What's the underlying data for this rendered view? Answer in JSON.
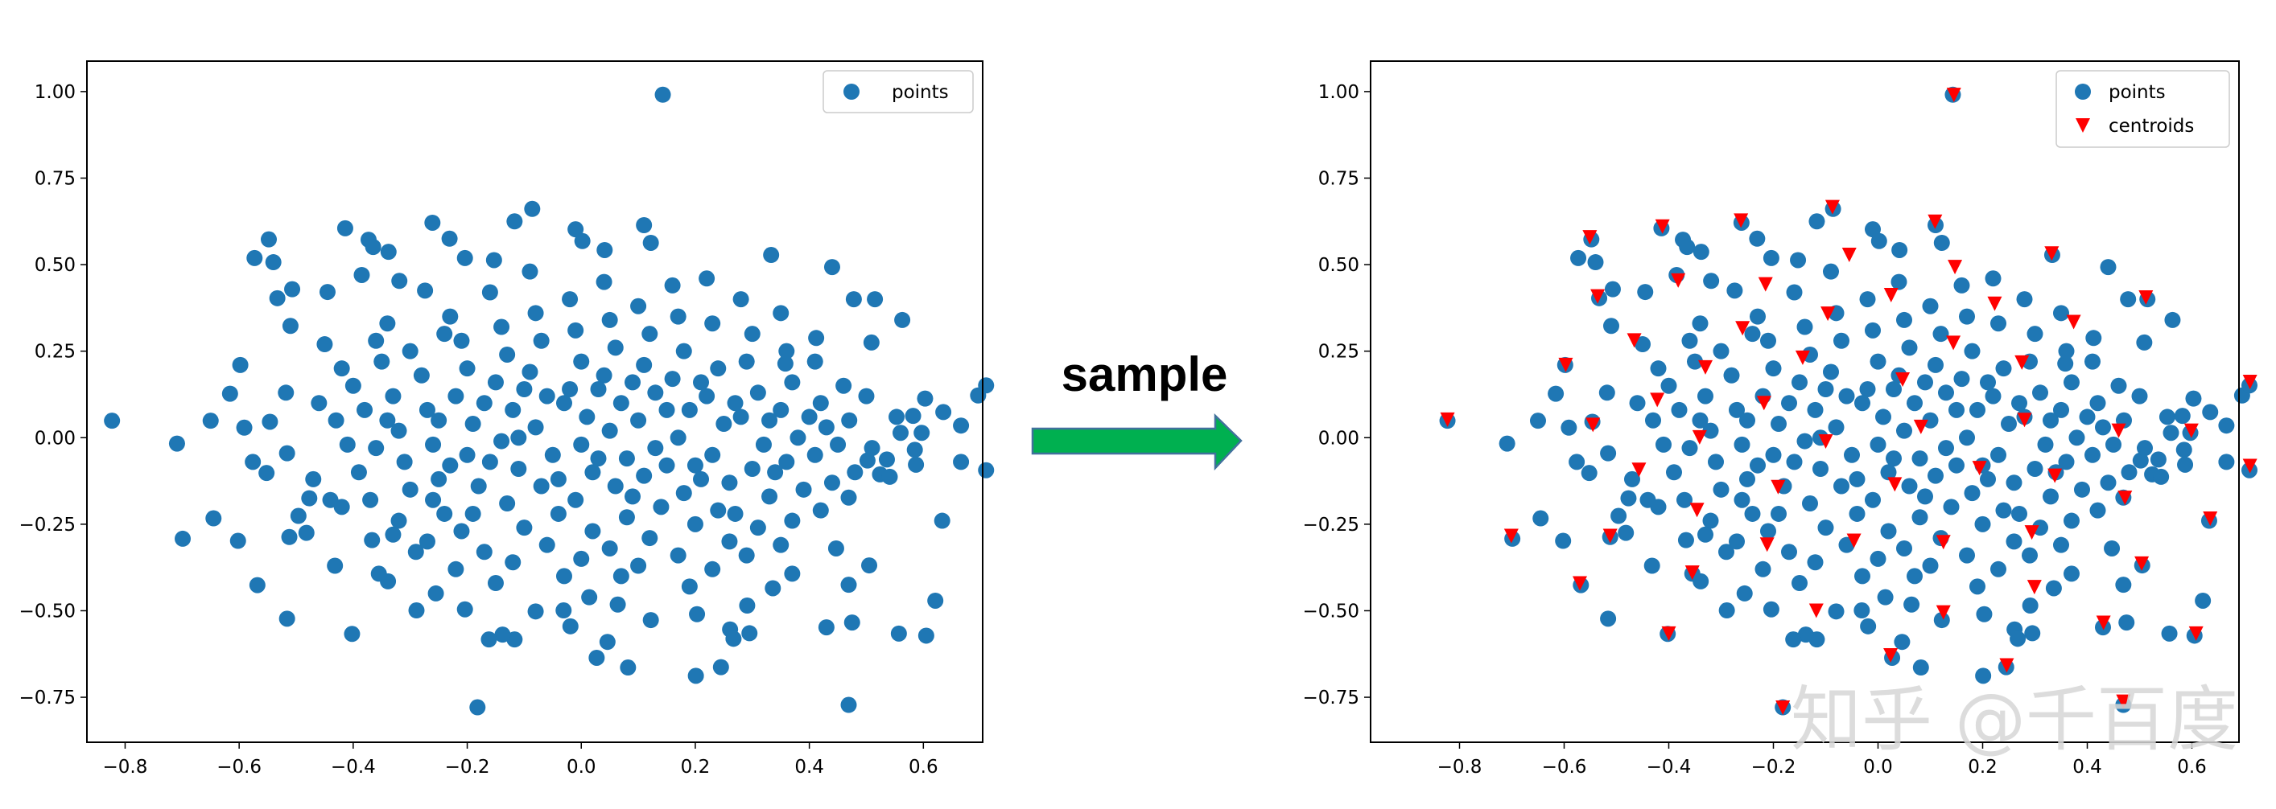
{
  "chart_data": [
    {
      "type": "scatter",
      "title": "",
      "xlabel": "",
      "ylabel": "",
      "xlim": [
        -0.867,
        0.704
      ],
      "ylim": [
        -0.88,
        1.088
      ],
      "xticks": [
        -0.8,
        -0.6,
        -0.4,
        -0.2,
        0.0,
        0.2,
        0.4,
        0.6
      ],
      "xtick_labels": [
        "−0.8",
        "−0.6",
        "−0.4",
        "−0.2",
        "0.0",
        "0.2",
        "0.4",
        "0.6"
      ],
      "yticks": [
        1.0,
        0.75,
        0.5,
        0.25,
        0.0,
        -0.25,
        -0.5,
        -0.75
      ],
      "ytick_labels": [
        "1.00",
        "0.75",
        "0.50",
        "0.25",
        "0.00",
        "−0.25",
        "−0.50",
        "−0.75"
      ],
      "grid": false,
      "legend_position": "top-right",
      "series": [
        {
          "name": "points",
          "marker": "circle",
          "color": "#1f77b4",
          "ref": "points"
        }
      ]
    },
    {
      "type": "scatter",
      "title": "",
      "xlabel": "",
      "ylabel": "",
      "xlim": [
        -0.97,
        0.69
      ],
      "ylim": [
        -0.88,
        1.088
      ],
      "xticks": [
        -0.8,
        -0.6,
        -0.4,
        -0.2,
        0.0,
        0.2,
        0.4,
        0.6
      ],
      "xtick_labels": [
        "−0.8",
        "−0.6",
        "−0.4",
        "−0.2",
        "0.0",
        "0.2",
        "0.4",
        "0.6"
      ],
      "yticks": [
        1.0,
        0.75,
        0.5,
        0.25,
        0.0,
        -0.25,
        -0.5,
        -0.75
      ],
      "ytick_labels": [
        "1.00",
        "0.75",
        "0.50",
        "0.25",
        "0.00",
        "−0.25",
        "−0.50",
        "−0.75"
      ],
      "grid": false,
      "legend_position": "top-right",
      "series": [
        {
          "name": "points",
          "marker": "circle",
          "color": "#1f77b4",
          "ref": "points"
        },
        {
          "name": "centroids",
          "marker": "triangle-down",
          "color": "#ff0000",
          "ref": "centroids"
        }
      ]
    }
  ],
  "points": [
    [
      0.143,
      0.991
    ],
    [
      -0.823,
      0.049
    ],
    [
      -0.709,
      -0.017
    ],
    [
      -0.699,
      -0.292
    ],
    [
      -0.65,
      0.049
    ],
    [
      -0.645,
      -0.233
    ],
    [
      -0.616,
      0.127
    ],
    [
      -0.598,
      0.21
    ],
    [
      -0.591,
      0.029
    ],
    [
      -0.602,
      -0.298
    ],
    [
      -0.576,
      -0.07
    ],
    [
      -0.568,
      -0.426
    ],
    [
      -0.552,
      -0.102
    ],
    [
      -0.548,
      0.573
    ],
    [
      -0.573,
      0.519
    ],
    [
      -0.54,
      0.507
    ],
    [
      -0.546,
      0.046
    ],
    [
      -0.518,
      0.13
    ],
    [
      -0.516,
      -0.045
    ],
    [
      -0.512,
      -0.287
    ],
    [
      -0.516,
      -0.523
    ],
    [
      -0.51,
      0.323
    ],
    [
      -0.533,
      0.403
    ],
    [
      -0.507,
      0.429
    ],
    [
      -0.496,
      -0.226
    ],
    [
      -0.482,
      -0.275
    ],
    [
      -0.477,
      -0.175
    ],
    [
      -0.445,
      0.421
    ],
    [
      -0.432,
      -0.37
    ],
    [
      -0.414,
      0.605
    ],
    [
      -0.402,
      -0.567
    ],
    [
      -0.385,
      0.47
    ],
    [
      -0.373,
      0.572
    ],
    [
      -0.365,
      0.551
    ],
    [
      -0.338,
      0.537
    ],
    [
      -0.319,
      0.453
    ],
    [
      -0.261,
      0.621
    ],
    [
      -0.231,
      0.575
    ],
    [
      -0.274,
      0.425
    ],
    [
      -0.204,
      0.519
    ],
    [
      -0.153,
      0.513
    ],
    [
      -0.117,
      0.625
    ],
    [
      -0.086,
      0.661
    ],
    [
      -0.01,
      0.602
    ],
    [
      0.002,
      0.568
    ],
    [
      0.11,
      0.614
    ],
    [
      0.122,
      0.563
    ],
    [
      0.041,
      0.542
    ],
    [
      0.44,
      0.493
    ],
    [
      0.333,
      0.528
    ],
    [
      0.478,
      0.4
    ],
    [
      0.515,
      0.4
    ],
    [
      0.563,
      0.34
    ],
    [
      0.509,
      0.275
    ],
    [
      0.358,
      0.214
    ],
    [
      0.412,
      0.288
    ],
    [
      0.603,
      0.113
    ],
    [
      0.696,
      0.122
    ],
    [
      0.71,
      0.151
    ],
    [
      0.635,
      0.074
    ],
    [
      0.666,
      0.035
    ],
    [
      0.666,
      -0.07
    ],
    [
      0.71,
      -0.094
    ],
    [
      0.553,
      0.06
    ],
    [
      0.582,
      0.063
    ],
    [
      0.56,
      0.014
    ],
    [
      0.597,
      0.014
    ],
    [
      0.585,
      -0.035
    ],
    [
      0.587,
      -0.078
    ],
    [
      0.536,
      -0.063
    ],
    [
      0.524,
      -0.106
    ],
    [
      0.541,
      -0.113
    ],
    [
      0.502,
      -0.066
    ],
    [
      0.633,
      -0.24
    ],
    [
      0.621,
      -0.471
    ],
    [
      0.557,
      -0.566
    ],
    [
      0.605,
      -0.572
    ],
    [
      0.469,
      -0.772
    ],
    [
      0.469,
      -0.425
    ],
    [
      0.475,
      -0.534
    ],
    [
      0.43,
      -0.548
    ],
    [
      0.505,
      -0.369
    ],
    [
      0.447,
      -0.32
    ],
    [
      0.469,
      -0.173
    ],
    [
      0.37,
      -0.393
    ],
    [
      0.295,
      -0.565
    ],
    [
      0.261,
      -0.554
    ],
    [
      0.267,
      -0.581
    ],
    [
      0.245,
      -0.663
    ],
    [
      0.201,
      -0.688
    ],
    [
      0.082,
      -0.664
    ],
    [
      0.027,
      -0.636
    ],
    [
      0.046,
      -0.59
    ],
    [
      0.064,
      -0.482
    ],
    [
      0.014,
      -0.461
    ],
    [
      -0.019,
      -0.545
    ],
    [
      -0.031,
      -0.499
    ],
    [
      -0.08,
      -0.502
    ],
    [
      -0.117,
      -0.583
    ],
    [
      -0.138,
      -0.569
    ],
    [
      -0.162,
      -0.583
    ],
    [
      -0.182,
      -0.779
    ],
    [
      -0.204,
      -0.496
    ],
    [
      -0.289,
      -0.499
    ],
    [
      -0.255,
      -0.45
    ],
    [
      -0.339,
      -0.415
    ],
    [
      -0.355,
      -0.393
    ],
    [
      -0.367,
      -0.296
    ],
    [
      0.203,
      -0.51
    ],
    [
      0.122,
      -0.527
    ],
    [
      0.291,
      -0.485
    ],
    [
      0.336,
      -0.435
    ],
    [
      -0.42,
      0.2
    ],
    [
      -0.4,
      0.15
    ],
    [
      -0.38,
      0.08
    ],
    [
      -0.43,
      0.05
    ],
    [
      -0.41,
      -0.02
    ],
    [
      -0.39,
      -0.1
    ],
    [
      -0.37,
      -0.18
    ],
    [
      -0.42,
      -0.2
    ],
    [
      -0.36,
      0.28
    ],
    [
      -0.34,
      0.33
    ],
    [
      -0.33,
      0.12
    ],
    [
      -0.32,
      0.02
    ],
    [
      -0.31,
      -0.07
    ],
    [
      -0.3,
      -0.15
    ],
    [
      -0.32,
      -0.24
    ],
    [
      -0.29,
      -0.33
    ],
    [
      -0.3,
      0.25
    ],
    [
      -0.28,
      0.18
    ],
    [
      -0.27,
      0.08
    ],
    [
      -0.26,
      -0.02
    ],
    [
      -0.25,
      -0.12
    ],
    [
      -0.24,
      -0.22
    ],
    [
      -0.27,
      -0.3
    ],
    [
      -0.22,
      -0.38
    ],
    [
      -0.23,
      0.35
    ],
    [
      -0.21,
      0.28
    ],
    [
      -0.2,
      0.2
    ],
    [
      -0.22,
      0.12
    ],
    [
      -0.19,
      0.04
    ],
    [
      -0.2,
      -0.05
    ],
    [
      -0.18,
      -0.14
    ],
    [
      -0.21,
      -0.27
    ],
    [
      -0.17,
      -0.33
    ],
    [
      -0.15,
      -0.42
    ],
    [
      -0.16,
      0.42
    ],
    [
      -0.14,
      0.32
    ],
    [
      -0.13,
      0.24
    ],
    [
      -0.15,
      0.16
    ],
    [
      -0.12,
      0.08
    ],
    [
      -0.14,
      -0.01
    ],
    [
      -0.11,
      -0.09
    ],
    [
      -0.13,
      -0.19
    ],
    [
      -0.1,
      -0.26
    ],
    [
      -0.12,
      -0.36
    ],
    [
      -0.09,
      0.48
    ],
    [
      -0.08,
      0.36
    ],
    [
      -0.07,
      0.28
    ],
    [
      -0.09,
      0.19
    ],
    [
      -0.06,
      0.12
    ],
    [
      -0.08,
      0.03
    ],
    [
      -0.05,
      -0.05
    ],
    [
      -0.07,
      -0.14
    ],
    [
      -0.04,
      -0.22
    ],
    [
      -0.06,
      -0.31
    ],
    [
      -0.03,
      -0.4
    ],
    [
      -0.02,
      0.4
    ],
    [
      -0.01,
      0.31
    ],
    [
      0.0,
      0.22
    ],
    [
      -0.02,
      0.14
    ],
    [
      0.01,
      0.06
    ],
    [
      0.0,
      -0.02
    ],
    [
      0.02,
      -0.1
    ],
    [
      -0.01,
      -0.18
    ],
    [
      0.02,
      -0.27
    ],
    [
      0.0,
      -0.35
    ],
    [
      0.04,
      0.45
    ],
    [
      0.05,
      0.34
    ],
    [
      0.06,
      0.26
    ],
    [
      0.04,
      0.18
    ],
    [
      0.07,
      0.1
    ],
    [
      0.05,
      0.02
    ],
    [
      0.08,
      -0.06
    ],
    [
      0.06,
      -0.14
    ],
    [
      0.08,
      -0.23
    ],
    [
      0.05,
      -0.32
    ],
    [
      0.07,
      -0.4
    ],
    [
      0.1,
      0.38
    ],
    [
      0.12,
      0.3
    ],
    [
      0.11,
      0.21
    ],
    [
      0.13,
      0.13
    ],
    [
      0.1,
      0.05
    ],
    [
      0.13,
      -0.03
    ],
    [
      0.11,
      -0.11
    ],
    [
      0.14,
      -0.2
    ],
    [
      0.12,
      -0.29
    ],
    [
      0.1,
      -0.37
    ],
    [
      0.16,
      0.44
    ],
    [
      0.17,
      0.35
    ],
    [
      0.18,
      0.25
    ],
    [
      0.16,
      0.17
    ],
    [
      0.19,
      0.08
    ],
    [
      0.17,
      0.0
    ],
    [
      0.2,
      -0.08
    ],
    [
      0.18,
      -0.16
    ],
    [
      0.2,
      -0.25
    ],
    [
      0.17,
      -0.34
    ],
    [
      0.19,
      -0.43
    ],
    [
      0.22,
      0.46
    ],
    [
      0.23,
      0.33
    ],
    [
      0.24,
      0.2
    ],
    [
      0.22,
      0.12
    ],
    [
      0.25,
      0.04
    ],
    [
      0.23,
      -0.05
    ],
    [
      0.26,
      -0.13
    ],
    [
      0.24,
      -0.21
    ],
    [
      0.26,
      -0.3
    ],
    [
      0.23,
      -0.38
    ],
    [
      0.28,
      0.4
    ],
    [
      0.3,
      0.3
    ],
    [
      0.29,
      0.22
    ],
    [
      0.31,
      0.13
    ],
    [
      0.28,
      0.06
    ],
    [
      0.32,
      -0.02
    ],
    [
      0.3,
      -0.09
    ],
    [
      0.33,
      -0.17
    ],
    [
      0.31,
      -0.26
    ],
    [
      0.29,
      -0.34
    ],
    [
      0.35,
      0.36
    ],
    [
      0.36,
      0.25
    ],
    [
      0.37,
      0.16
    ],
    [
      0.35,
      0.08
    ],
    [
      0.38,
      0.0
    ],
    [
      0.36,
      -0.07
    ],
    [
      0.39,
      -0.15
    ],
    [
      0.37,
      -0.24
    ],
    [
      0.35,
      -0.31
    ],
    [
      0.41,
      0.22
    ],
    [
      0.42,
      0.1
    ],
    [
      0.43,
      0.03
    ],
    [
      0.41,
      -0.05
    ],
    [
      0.44,
      -0.13
    ],
    [
      0.42,
      -0.21
    ],
    [
      0.46,
      0.15
    ],
    [
      0.47,
      0.05
    ],
    [
      0.45,
      -0.02
    ],
    [
      0.48,
      -0.1
    ],
    [
      0.5,
      0.12
    ],
    [
      0.51,
      -0.03
    ],
    [
      -0.46,
      0.1
    ],
    [
      -0.47,
      -0.12
    ],
    [
      -0.45,
      0.27
    ],
    [
      -0.44,
      -0.18
    ],
    [
      -0.35,
      0.22
    ],
    [
      -0.34,
      0.05
    ],
    [
      -0.36,
      -0.03
    ],
    [
      -0.33,
      -0.28
    ],
    [
      -0.24,
      0.3
    ],
    [
      -0.25,
      0.05
    ],
    [
      -0.23,
      -0.08
    ],
    [
      -0.26,
      -0.18
    ],
    [
      -0.17,
      0.1
    ],
    [
      -0.16,
      -0.07
    ],
    [
      -0.19,
      -0.22
    ],
    [
      -0.1,
      0.14
    ],
    [
      -0.11,
      0.0
    ],
    [
      -0.03,
      0.1
    ],
    [
      -0.04,
      -0.12
    ],
    [
      0.03,
      0.14
    ],
    [
      0.03,
      -0.06
    ],
    [
      0.09,
      0.16
    ],
    [
      0.09,
      -0.17
    ],
    [
      0.15,
      0.08
    ],
    [
      0.15,
      -0.08
    ],
    [
      0.21,
      0.16
    ],
    [
      0.21,
      -0.12
    ],
    [
      0.27,
      0.1
    ],
    [
      0.27,
      -0.22
    ],
    [
      0.33,
      0.05
    ],
    [
      0.34,
      -0.1
    ],
    [
      0.4,
      0.06
    ]
  ],
  "centroids": [
    [
      0.145,
      0.99
    ],
    [
      -0.087,
      0.666
    ],
    [
      -0.262,
      0.627
    ],
    [
      -0.412,
      0.61
    ],
    [
      -0.551,
      0.579
    ],
    [
      0.109,
      0.624
    ],
    [
      0.332,
      0.532
    ],
    [
      -0.055,
      0.528
    ],
    [
      0.147,
      0.493
    ],
    [
      -0.382,
      0.454
    ],
    [
      -0.215,
      0.443
    ],
    [
      -0.536,
      0.408
    ],
    [
      0.025,
      0.412
    ],
    [
      0.512,
      0.405
    ],
    [
      0.223,
      0.387
    ],
    [
      -0.096,
      0.358
    ],
    [
      0.374,
      0.334
    ],
    [
      -0.259,
      0.316
    ],
    [
      0.144,
      0.274
    ],
    [
      -0.466,
      0.281
    ],
    [
      -0.144,
      0.231
    ],
    [
      0.275,
      0.217
    ],
    [
      -0.597,
      0.21
    ],
    [
      -0.33,
      0.203
    ],
    [
      0.047,
      0.168
    ],
    [
      0.711,
      0.161
    ],
    [
      -0.422,
      0.109
    ],
    [
      -0.218,
      0.1
    ],
    [
      -0.823,
      0.052
    ],
    [
      0.28,
      0.051
    ],
    [
      -0.545,
      0.037
    ],
    [
      0.082,
      0.031
    ],
    [
      0.46,
      0.02
    ],
    [
      0.599,
      0.02
    ],
    [
      -0.341,
      0.001
    ],
    [
      -0.1,
      -0.011
    ],
    [
      0.194,
      -0.088
    ],
    [
      0.711,
      -0.082
    ],
    [
      -0.457,
      -0.093
    ],
    [
      0.338,
      -0.11
    ],
    [
      0.032,
      -0.135
    ],
    [
      -0.191,
      -0.143
    ],
    [
      0.472,
      -0.174
    ],
    [
      -0.346,
      -0.209
    ],
    [
      0.635,
      -0.234
    ],
    [
      -0.701,
      -0.284
    ],
    [
      -0.512,
      -0.284
    ],
    [
      0.294,
      -0.274
    ],
    [
      -0.212,
      -0.309
    ],
    [
      -0.046,
      -0.298
    ],
    [
      0.125,
      -0.302
    ],
    [
      -0.355,
      -0.39
    ],
    [
      0.504,
      -0.364
    ],
    [
      -0.57,
      -0.421
    ],
    [
      0.299,
      -0.432
    ],
    [
      -0.118,
      -0.5
    ],
    [
      0.125,
      -0.505
    ],
    [
      -0.4,
      -0.566
    ],
    [
      0.431,
      -0.535
    ],
    [
      0.608,
      -0.566
    ],
    [
      0.024,
      -0.629
    ],
    [
      0.246,
      -0.658
    ],
    [
      -0.182,
      -0.78
    ],
    [
      0.469,
      -0.763
    ]
  ],
  "annotation": {
    "label": "sample"
  },
  "watermark": "知乎 @千百度",
  "colors": {
    "points": "#1f77b4",
    "centroids": "#ff0000",
    "arrow_fill": "#00b050",
    "arrow_stroke": "#41719c"
  }
}
